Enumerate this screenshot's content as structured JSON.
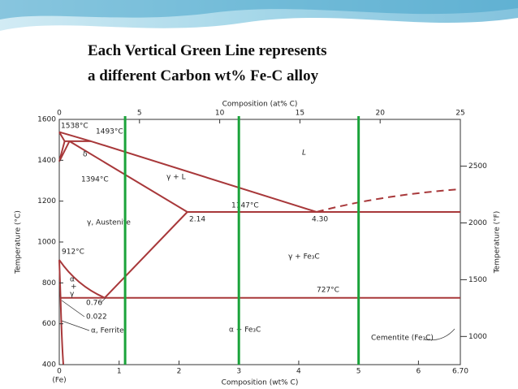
{
  "slide": {
    "title_lines": [
      "Each Vertical Green Line represents",
      "a different Carbon wt% Fe-C alloy"
    ]
  },
  "diagram": {
    "x_label": "Composition (wt% C)",
    "x_top_label": "Composition (at% C)",
    "y_label": "Temperature (°C)",
    "y2_label": "Temperature (°F)",
    "x_left_label": "(Fe)",
    "xlim": [
      0,
      6.7
    ],
    "xticks": [
      0,
      1,
      2,
      3,
      4,
      5,
      6,
      {
        "value": 6.7,
        "label": "6.70"
      }
    ],
    "x_top_lim": [
      0,
      25
    ],
    "x_top_ticks": [
      0,
      5,
      10,
      15,
      20,
      25
    ],
    "ylim": [
      400,
      1600
    ],
    "yticks": [
      400,
      600,
      800,
      1000,
      1200,
      1400,
      1600
    ],
    "y2lim": [
      752,
      2912
    ],
    "y2ticks": [
      1000,
      1500,
      2000,
      2500
    ],
    "alloy_lines": [
      1.1,
      3.0,
      5.0
    ],
    "alloy_color": "#1aa33a",
    "labels": [
      "1538°C",
      "1493°C",
      "δ",
      "1394°C",
      "γ + L",
      "L",
      "1147°C",
      "2.14",
      "4.30",
      "γ, Austenite",
      "γ + Fe₃C",
      "912°C",
      "α",
      "+",
      "γ",
      "727°C",
      "0.76",
      "0.022",
      "α, Ferrite",
      "α + Fe₃C",
      "Cementite (Fe₃C)"
    ]
  }
}
